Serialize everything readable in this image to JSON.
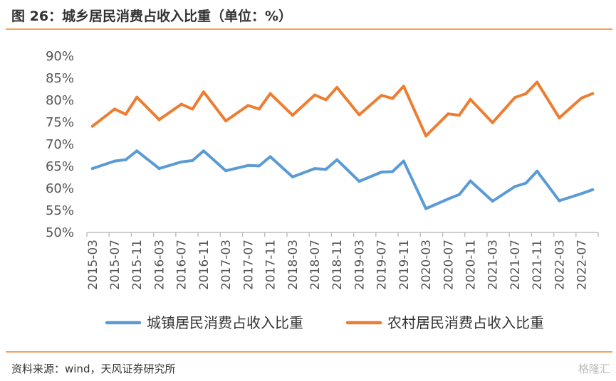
{
  "header": {
    "title": "图 26：城乡居民消费占收入比重（单位：%）"
  },
  "footer": {
    "source": "资料来源：wind，天风证券研究所",
    "watermark": "格隆汇"
  },
  "colors": {
    "urban": "#5b9bd5",
    "rural": "#ed7d31",
    "rule": "#f0a55a",
    "axis": "#bfbfbf"
  },
  "chart_data": {
    "type": "line",
    "title": "",
    "xlabel": "",
    "ylabel": "",
    "ylim": [
      50,
      90
    ],
    "yticks": [
      "50%",
      "55%",
      "60%",
      "65%",
      "70%",
      "75%",
      "80%",
      "85%",
      "90%"
    ],
    "x": [
      "2015-03",
      "2015-05",
      "2015-07",
      "2015-09",
      "2015-11",
      "2016-01",
      "2016-03",
      "2016-05",
      "2016-07",
      "2016-09",
      "2016-11",
      "2017-01",
      "2017-03",
      "2017-05",
      "2017-07",
      "2017-09",
      "2017-11",
      "2018-01",
      "2018-03",
      "2018-05",
      "2018-07",
      "2018-09",
      "2018-11",
      "2019-01",
      "2019-03",
      "2019-05",
      "2019-07",
      "2019-09",
      "2019-11",
      "2020-01",
      "2020-03",
      "2020-05",
      "2020-07",
      "2020-09",
      "2020-11",
      "2021-01",
      "2021-03",
      "2021-05",
      "2021-07",
      "2021-09",
      "2021-11",
      "2022-01",
      "2022-03",
      "2022-05",
      "2022-07",
      "2022-09"
    ],
    "xtick_labels": [
      "2015-03",
      "2015-07",
      "2015-11",
      "2016-03",
      "2016-07",
      "2016-11",
      "2017-03",
      "2017-07",
      "2017-11",
      "2018-03",
      "2018-07",
      "2018-11",
      "2019-03",
      "2019-07",
      "2019-11",
      "2020-03",
      "2020-07",
      "2020-11",
      "2021-03",
      "2021-07",
      "2021-11",
      "2022-03",
      "2022-07"
    ],
    "series": [
      {
        "name": "城镇居民消费占收入比重",
        "points": [
          [
            "2015-03",
            64.5
          ],
          [
            "2015-07",
            66.2
          ],
          [
            "2015-09",
            66.5
          ],
          [
            "2015-11",
            68.5
          ],
          [
            "2016-03",
            64.5
          ],
          [
            "2016-07",
            66.0
          ],
          [
            "2016-09",
            66.3
          ],
          [
            "2016-11",
            68.5
          ],
          [
            "2017-03",
            64.0
          ],
          [
            "2017-07",
            65.2
          ],
          [
            "2017-09",
            65.1
          ],
          [
            "2017-11",
            67.2
          ],
          [
            "2018-03",
            62.6
          ],
          [
            "2018-07",
            64.5
          ],
          [
            "2018-09",
            64.3
          ],
          [
            "2018-11",
            66.5
          ],
          [
            "2019-03",
            61.6
          ],
          [
            "2019-07",
            63.7
          ],
          [
            "2019-09",
            63.8
          ],
          [
            "2019-11",
            66.2
          ],
          [
            "2020-03",
            55.4
          ],
          [
            "2020-07",
            57.6
          ],
          [
            "2020-09",
            58.6
          ],
          [
            "2020-11",
            61.7
          ],
          [
            "2021-03",
            57.1
          ],
          [
            "2021-07",
            60.4
          ],
          [
            "2021-09",
            61.2
          ],
          [
            "2021-11",
            63.9
          ],
          [
            "2022-03",
            57.2
          ],
          [
            "2022-07",
            58.8
          ],
          [
            "2022-09",
            59.7
          ]
        ]
      },
      {
        "name": "农村居民消费占收入比重",
        "points": [
          [
            "2015-03",
            74.1
          ],
          [
            "2015-07",
            78.0
          ],
          [
            "2015-09",
            76.8
          ],
          [
            "2015-11",
            80.7
          ],
          [
            "2016-03",
            75.6
          ],
          [
            "2016-07",
            79.1
          ],
          [
            "2016-09",
            78.0
          ],
          [
            "2016-11",
            81.9
          ],
          [
            "2017-03",
            75.3
          ],
          [
            "2017-07",
            78.8
          ],
          [
            "2017-09",
            78.0
          ],
          [
            "2017-11",
            81.5
          ],
          [
            "2018-03",
            76.6
          ],
          [
            "2018-07",
            81.2
          ],
          [
            "2018-09",
            80.1
          ],
          [
            "2018-11",
            82.9
          ],
          [
            "2019-03",
            76.7
          ],
          [
            "2019-07",
            81.1
          ],
          [
            "2019-09",
            80.4
          ],
          [
            "2019-11",
            83.2
          ],
          [
            "2020-03",
            71.9
          ],
          [
            "2020-07",
            76.9
          ],
          [
            "2020-09",
            76.6
          ],
          [
            "2020-11",
            80.2
          ],
          [
            "2021-03",
            74.9
          ],
          [
            "2021-07",
            80.6
          ],
          [
            "2021-09",
            81.5
          ],
          [
            "2021-11",
            84.1
          ],
          [
            "2022-03",
            76.0
          ],
          [
            "2022-07",
            80.5
          ],
          [
            "2022-09",
            81.5
          ]
        ]
      }
    ],
    "legend": "bottom",
    "grid": false
  }
}
